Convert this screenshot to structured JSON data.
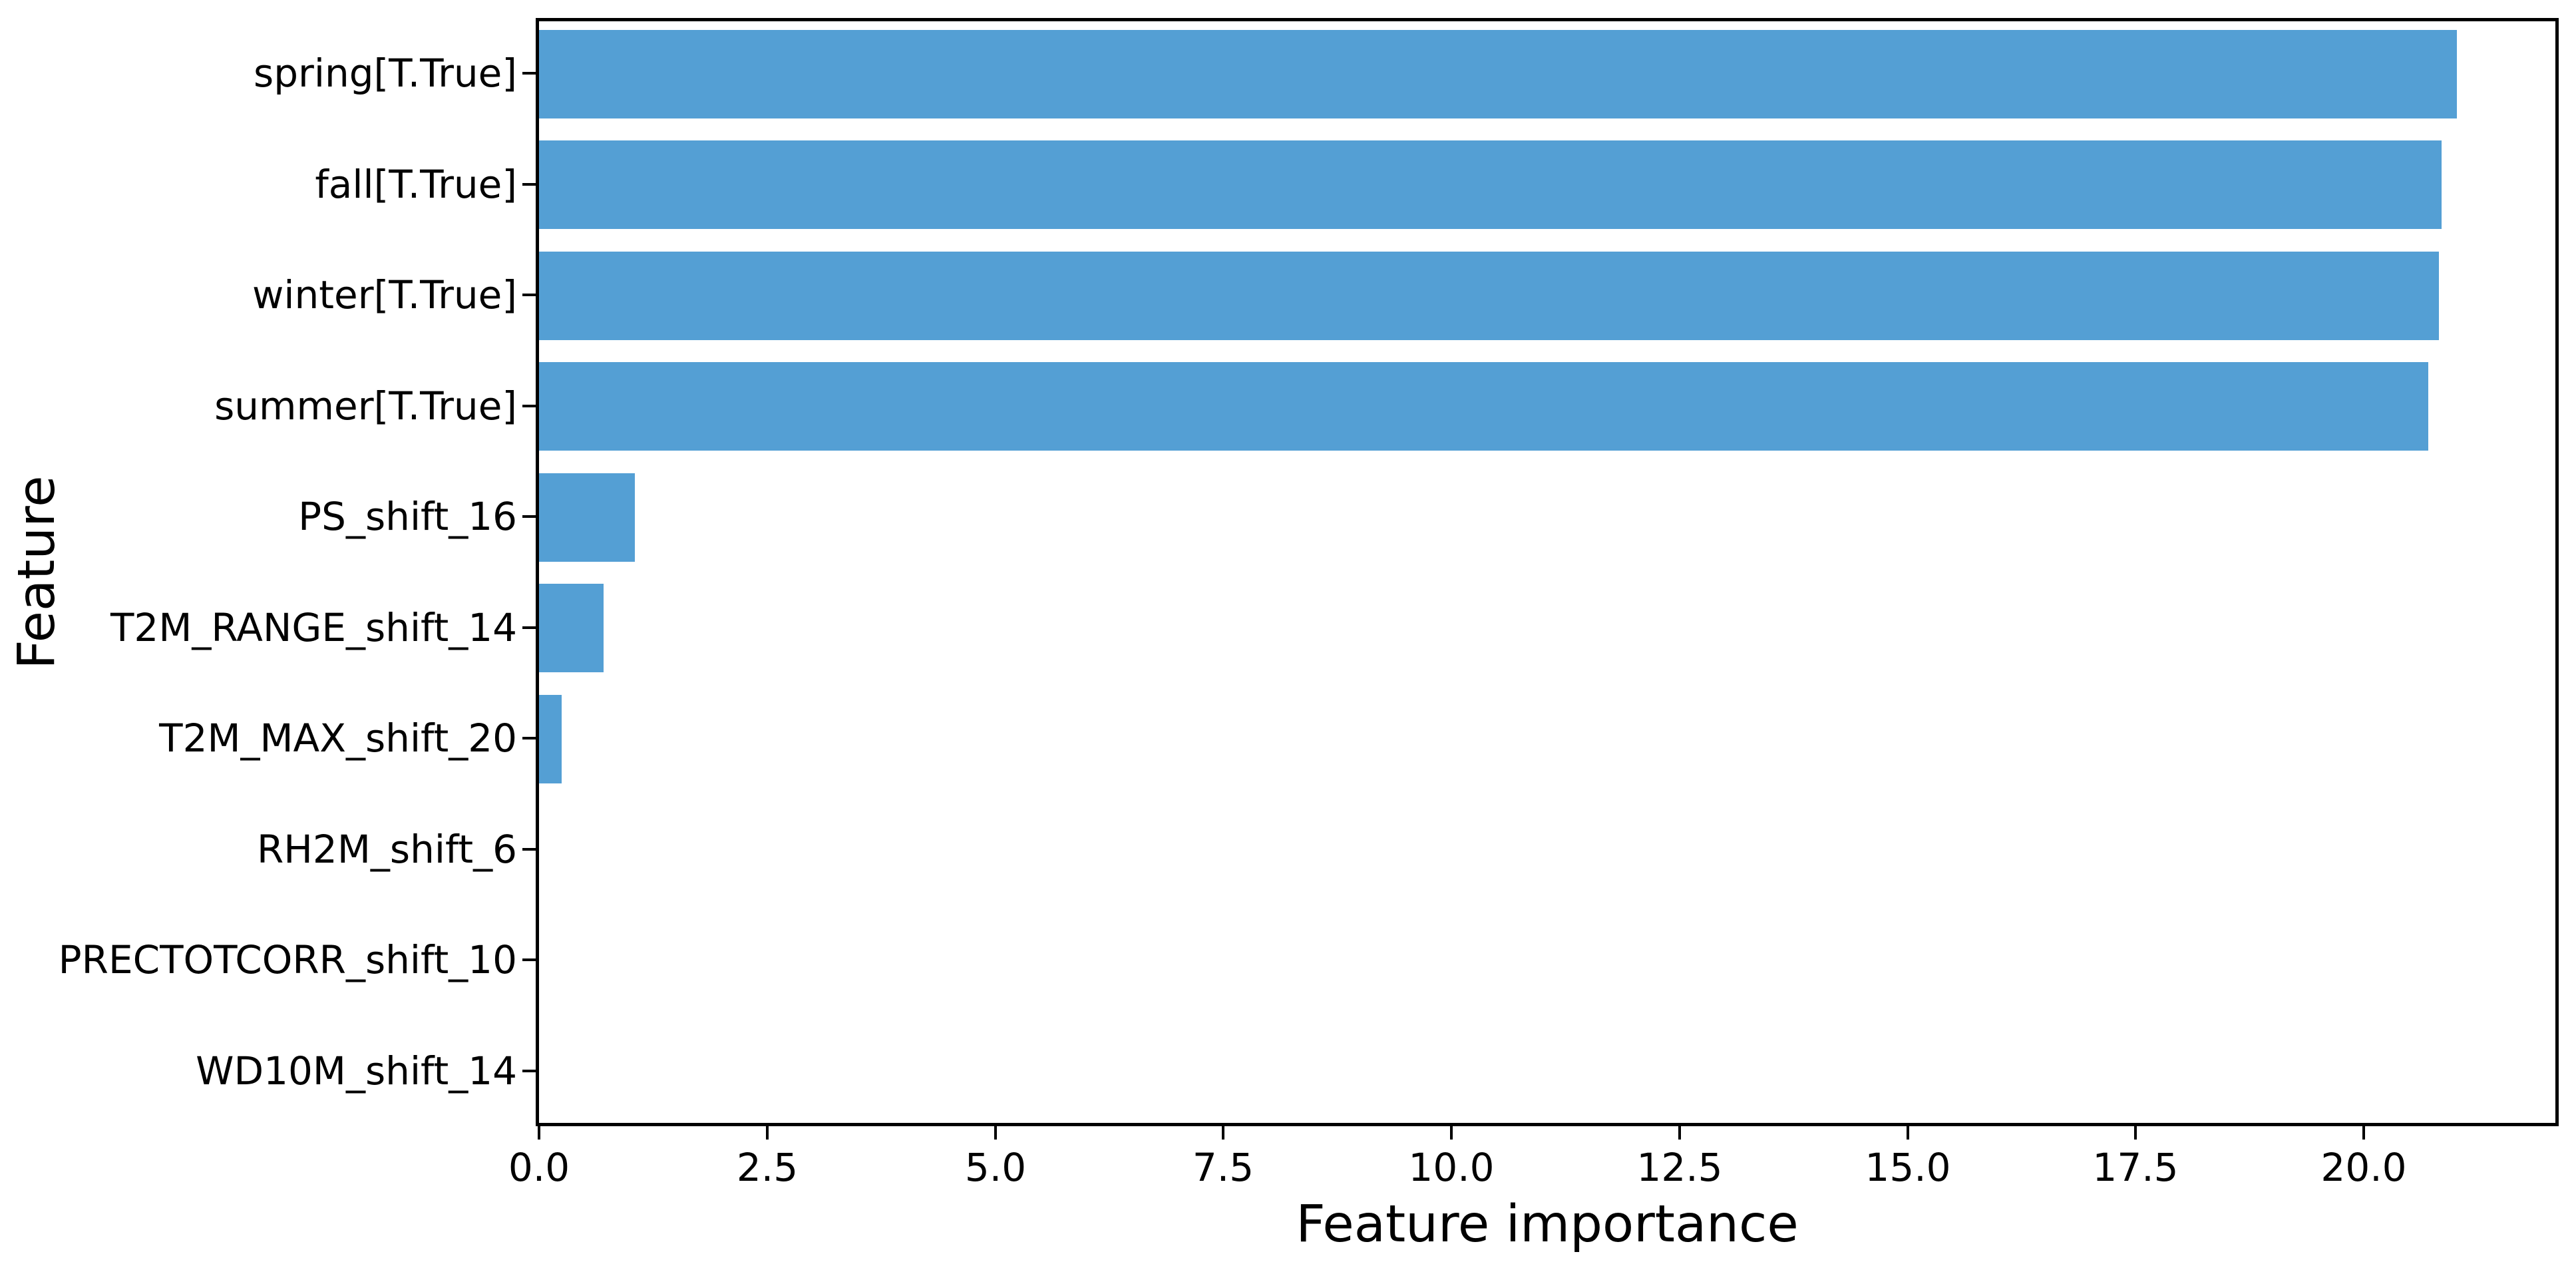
{
  "chart_data": {
    "type": "bar",
    "orientation": "horizontal",
    "title": "",
    "xlabel": "Feature importance",
    "ylabel": "Feature",
    "categories": [
      "spring[T.True]",
      "fall[T.True]",
      "winter[T.True]",
      "summer[T.True]",
      "PS_shift_16",
      "T2M_RANGE_shift_14",
      "T2M_MAX_shift_20",
      "RH2M_shift_6",
      "PRECTOTCORR_shift_10",
      "WD10M_shift_14"
    ],
    "values": [
      21.02,
      20.85,
      20.82,
      20.71,
      1.05,
      0.71,
      0.25,
      0.0,
      0.0,
      0.0
    ],
    "xticks": [
      0.0,
      2.5,
      5.0,
      7.5,
      10.0,
      12.5,
      15.0,
      17.5,
      20.0
    ],
    "xtick_labels": [
      "0.0",
      "2.5",
      "5.0",
      "7.5",
      "10.0",
      "12.5",
      "15.0",
      "17.5",
      "20.0"
    ],
    "xlim": [
      0,
      22.1
    ],
    "bar_height_fraction": 0.8,
    "bar_color": "#549fd4",
    "grid": false,
    "legend": null,
    "background_color": "#ffffff",
    "spine_color": "#000000"
  }
}
